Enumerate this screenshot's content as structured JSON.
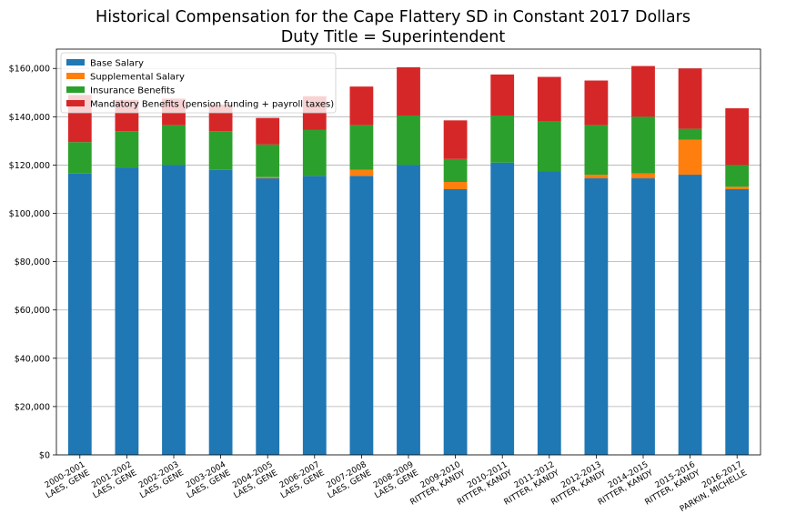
{
  "chart_data": {
    "type": "bar",
    "stacked": true,
    "title": "Historical Compensation for the Cape Flattery SD in Constant 2017 Dollars",
    "subtitle": "Duty Title = Superintendent",
    "xlabel": "",
    "ylabel": "",
    "ylim": [
      0,
      168000
    ],
    "yticks": [
      0,
      20000,
      40000,
      60000,
      80000,
      100000,
      120000,
      140000,
      160000
    ],
    "ytick_labels": [
      "$0",
      "$20,000",
      "$40,000",
      "$60,000",
      "$80,000",
      "$100,000",
      "$120,000",
      "$140,000",
      "$160,000"
    ],
    "grid": "horizontal",
    "legend_position": "top-left",
    "categories": [
      [
        "2000-2001",
        "LAES, GENE"
      ],
      [
        "2001-2002",
        "LAES, GENE"
      ],
      [
        "2002-2003",
        "LAES, GENE"
      ],
      [
        "2003-2004",
        "LAES, GENE"
      ],
      [
        "2004-2005",
        "LAES, GENE"
      ],
      [
        "2006-2007",
        "LAES, GENE"
      ],
      [
        "2007-2008",
        "LAES, GENE"
      ],
      [
        "2008-2009",
        "LAES, GENE"
      ],
      [
        "2009-2010",
        "RITTER, KANDY"
      ],
      [
        "2010-2011",
        "RITTER, KANDY"
      ],
      [
        "2011-2012",
        "RITTER, KANDY"
      ],
      [
        "2012-2013",
        "RITTER, KANDY"
      ],
      [
        "2014-2015",
        "RITTER, KANDY"
      ],
      [
        "2015-2016",
        "RITTER, KANDY"
      ],
      [
        "2016-2017",
        "PARKIN, MICHELLE"
      ]
    ],
    "series": [
      {
        "name": "Base Salary",
        "color": "#1f77b4",
        "values": [
          116500,
          119000,
          120000,
          118000,
          114500,
          115500,
          115500,
          120000,
          110000,
          121000,
          117500,
          114500,
          114500,
          116000,
          110000
        ]
      },
      {
        "name": "Supplemental Salary",
        "color": "#ff7f0e",
        "values": [
          0,
          0,
          0,
          0,
          500,
          0,
          2500,
          0,
          3000,
          0,
          0,
          1500,
          2000,
          14500,
          1000
        ]
      },
      {
        "name": "Insurance Benefits",
        "color": "#2ca02c",
        "values": [
          13000,
          15000,
          16500,
          16000,
          13500,
          19000,
          18500,
          20500,
          9500,
          19500,
          20500,
          20500,
          23500,
          4500,
          9000
        ]
      },
      {
        "name": "Mandatory Benefits (pension funding + payroll taxes)",
        "color": "#d62728",
        "values": [
          19500,
          13000,
          11000,
          11000,
          11000,
          14000,
          16000,
          20000,
          16000,
          17000,
          18500,
          18500,
          21000,
          25000,
          23500
        ]
      }
    ]
  }
}
